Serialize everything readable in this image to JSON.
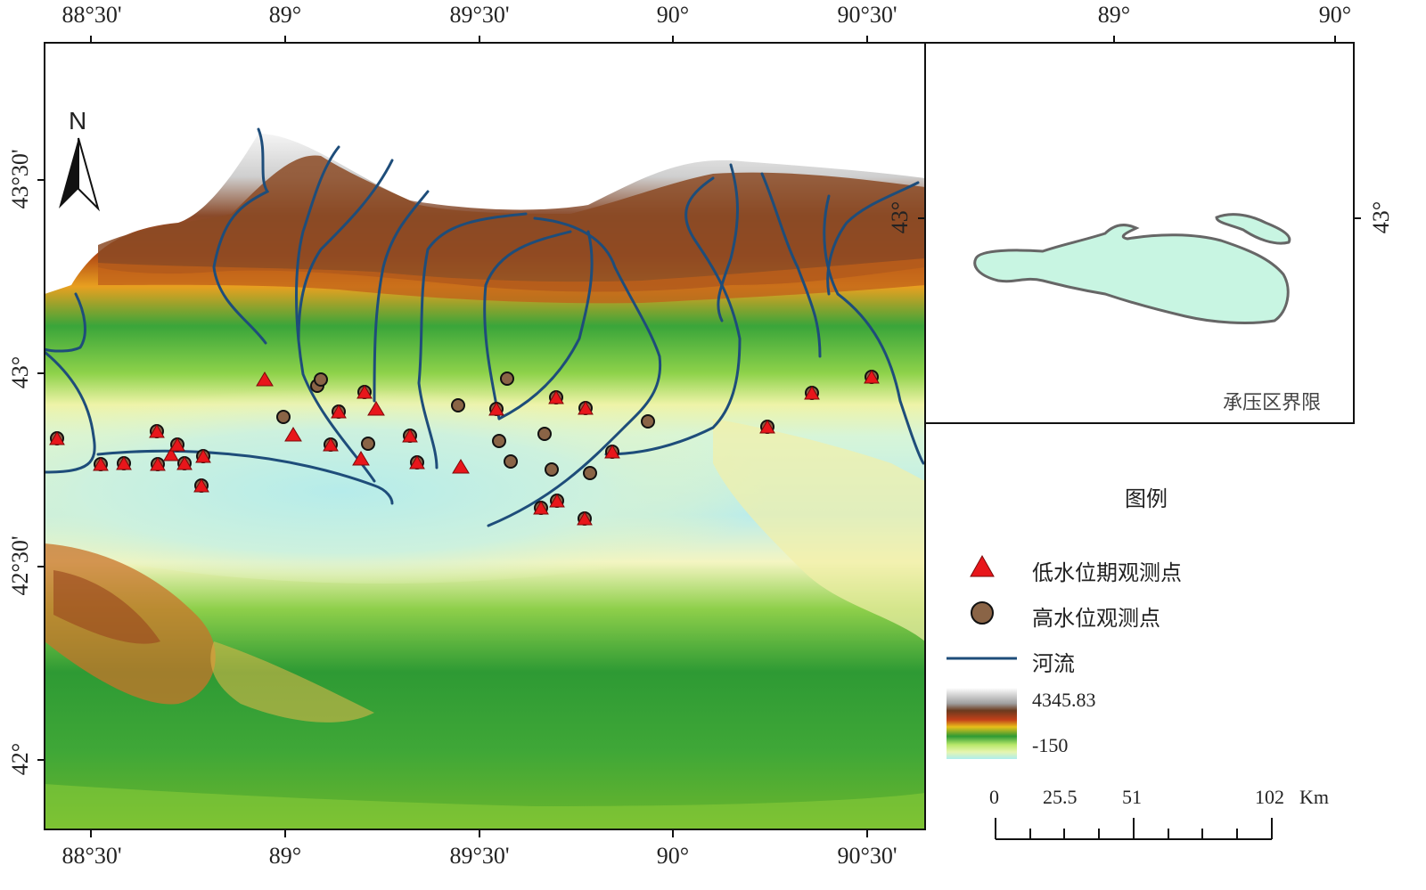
{
  "map": {
    "top_ticks": [
      "88°30'",
      "89°",
      "89°30'",
      "90°",
      "90°30'"
    ],
    "bottom_ticks": [
      "88°30'",
      "89°",
      "89°30'",
      "90°",
      "90°30'"
    ],
    "left_ticks": [
      "43°30'",
      "43°",
      "42°30'",
      "42°"
    ],
    "north_label": "N"
  },
  "inset": {
    "top_ticks": [
      "89°",
      "90°"
    ],
    "lat_label_inner": "43°",
    "lat_label_outer": "43°",
    "caption": "承压区界限",
    "colors": {
      "fill": "#c8f5e2",
      "stroke": "#666666"
    }
  },
  "legend": {
    "title": "图例",
    "low_water_label": "低水位期观测点",
    "high_water_label": "高水位观测点",
    "river_label": "河流",
    "elev_max": "4345.83",
    "elev_min": "-150",
    "colors": {
      "triangle": "#e8161b",
      "circle": "#8a6446",
      "river": "#1e4d7a"
    }
  },
  "scale_bar": {
    "labels": [
      "0",
      "25.5",
      "51",
      "102"
    ],
    "unit": "Km"
  }
}
